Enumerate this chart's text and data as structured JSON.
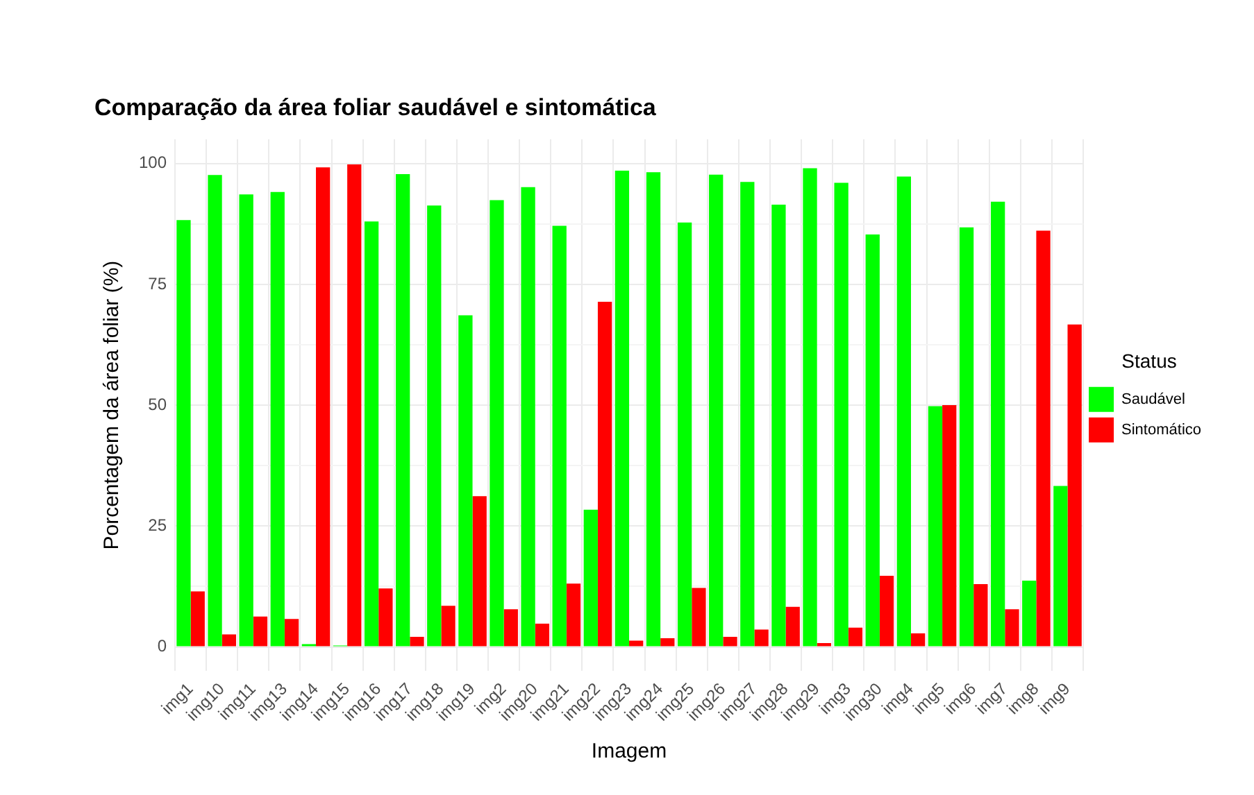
{
  "chart_data": {
    "type": "bar",
    "title": "Comparação da área foliar saudável e sintomática",
    "xlabel": "Imagem",
    "ylabel": "Porcentagem da área foliar (%)",
    "legend_title": "Status",
    "legend": "right",
    "grid": true,
    "categories": [
      "img1",
      "img10",
      "img11",
      "img13",
      "img14",
      "img15",
      "img16",
      "img17",
      "img18",
      "img19",
      "img2",
      "img20",
      "img21",
      "img22",
      "img23",
      "img24",
      "img25",
      "img26",
      "img27",
      "img28",
      "img29",
      "img3",
      "img30",
      "img4",
      "img5",
      "img6",
      "img7",
      "img8",
      "img9"
    ],
    "series": [
      {
        "name": "Saudável",
        "color": "#00ff00",
        "values": [
          88.3,
          97.6,
          93.6,
          94.1,
          0.6,
          0.3,
          88.0,
          97.8,
          91.3,
          68.6,
          92.4,
          95.1,
          87.1,
          28.4,
          98.5,
          98.2,
          87.8,
          97.7,
          96.2,
          91.5,
          99.0,
          96.0,
          85.3,
          97.3,
          49.8,
          86.8,
          92.1,
          13.7,
          33.3
        ]
      },
      {
        "name": "Sintomático",
        "color": "#ff0000",
        "values": [
          11.5,
          2.6,
          6.3,
          5.8,
          99.2,
          99.8,
          12.1,
          2.1,
          8.5,
          31.2,
          7.8,
          4.8,
          13.1,
          71.4,
          1.3,
          1.8,
          12.2,
          2.1,
          3.6,
          8.3,
          0.8,
          4.0,
          14.7,
          2.8,
          50.0,
          13.0,
          7.8,
          86.1,
          66.7
        ]
      }
    ],
    "ylim": [
      -5,
      105
    ],
    "yticks": [
      0,
      {
        "value": 12.5,
        "label": null
      },
      25,
      {
        "value": 37.5,
        "label": null
      },
      50,
      {
        "value": 62.5,
        "label": null
      },
      75,
      {
        "value": 87.5,
        "label": null
      },
      100
    ]
  }
}
